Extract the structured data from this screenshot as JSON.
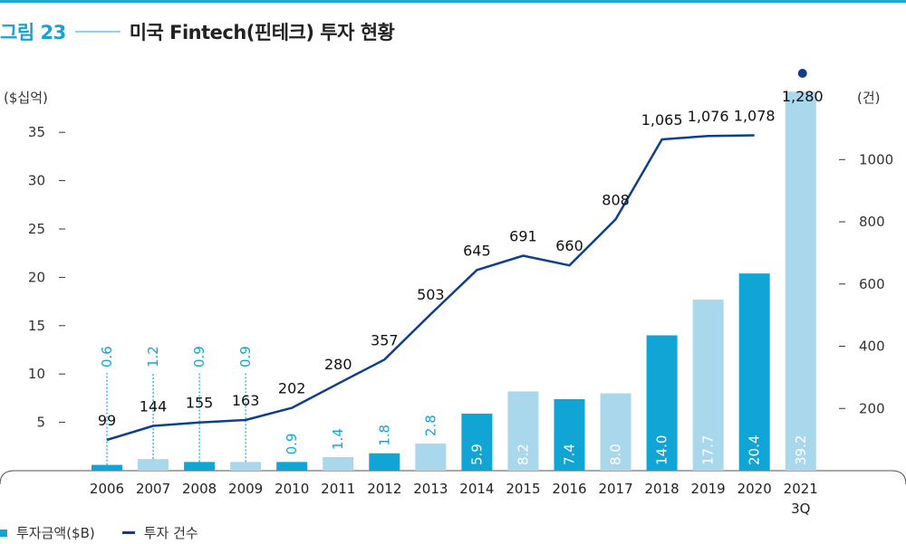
{
  "figure": {
    "number": "그림 23",
    "title": "미국 Fintech(핀테크) 투자 현황"
  },
  "chart_data": {
    "type": "bar+line",
    "categories": [
      "2006",
      "2007",
      "2008",
      "2009",
      "2010",
      "2011",
      "2012",
      "2013",
      "2014",
      "2015",
      "2016",
      "2017",
      "2018",
      "2019",
      "2020",
      "2021"
    ],
    "category_sublabels": [
      "",
      "",
      "",
      "",
      "",
      "",
      "",
      "",
      "",
      "",
      "",
      "",
      "",
      "",
      "",
      "3Q"
    ],
    "series": [
      {
        "name": "투자금액($B)",
        "chart": "bar",
        "axis": "left",
        "values": [
          0.6,
          1.2,
          0.9,
          0.9,
          0.9,
          1.4,
          1.8,
          2.8,
          5.9,
          8.2,
          7.4,
          8.0,
          14.0,
          17.7,
          20.4,
          39.2
        ],
        "labels": [
          "0.6",
          "1.2",
          "0.9",
          "0.9",
          "0.9",
          "1.4",
          "1.8",
          "2.8",
          "5.9",
          "8.2",
          "7.4",
          "8.0",
          "14.0",
          "17.7",
          "20.4",
          "39.2"
        ]
      },
      {
        "name": "투자 건수",
        "chart": "line",
        "axis": "right",
        "values": [
          99,
          144,
          155,
          163,
          202,
          280,
          357,
          503,
          645,
          691,
          660,
          808,
          1065,
          1076,
          1078,
          1280
        ],
        "labels": [
          "99",
          "144",
          "155",
          "163",
          "202",
          "280",
          "357",
          "503",
          "645",
          "691",
          "660",
          "808",
          "1,065",
          "1,076",
          "1,078",
          "1,280"
        ]
      }
    ],
    "bar_colors": [
      "#11a5d5",
      "#a9d7ec",
      "#11a5d5",
      "#a9d7ec",
      "#11a5d5",
      "#a9d7ec",
      "#11a5d5",
      "#a9d7ec",
      "#11a5d5",
      "#a9d7ec",
      "#11a5d5",
      "#a9d7ec",
      "#11a5d5",
      "#a9d7ec",
      "#11a5d5",
      "#a9d7ec"
    ],
    "line_color": "#0f3f8c",
    "left_axis": {
      "unit": "($십억)",
      "ticks": [
        5,
        10,
        15,
        20,
        25,
        30,
        35
      ],
      "ylim": [
        0,
        39.2
      ]
    },
    "right_axis": {
      "unit": "(건)",
      "ticks": [
        200,
        400,
        600,
        800,
        1000
      ],
      "ylim": [
        0,
        1256
      ]
    },
    "legend": [
      "투자금액($B)",
      "투자 건수"
    ],
    "legend_position": "bottom-left"
  }
}
